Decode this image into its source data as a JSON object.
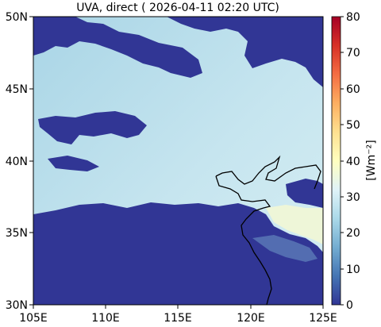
{
  "title": "UVA, direct ( 2026-04-11 02:20 UTC)",
  "map": {
    "x_ticks": [
      "105E",
      "110E",
      "115E",
      "120E",
      "125E"
    ],
    "y_ticks": [
      "30N",
      "35N",
      "40N",
      "45N",
      "50N"
    ],
    "lon_range": [
      105,
      125
    ],
    "lat_range": [
      30,
      50
    ]
  },
  "colorbar": {
    "label": "[Wm⁻²]",
    "ticks": [
      "0",
      "10",
      "20",
      "30",
      "40",
      "50",
      "60",
      "70",
      "80"
    ],
    "range": [
      0,
      80
    ],
    "colormap": "RdYlBu_r"
  },
  "colors": {
    "low": "#313695",
    "background_field": "#b4dcea",
    "high_field": "#eef6d8",
    "coast": "#000000"
  }
}
